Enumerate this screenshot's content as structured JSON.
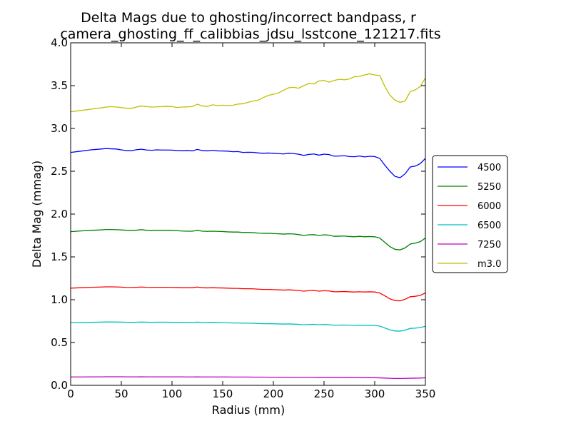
{
  "chart_data": {
    "type": "line",
    "title": "Delta Mags due to ghosting/incorrect bandpass, r",
    "subtitle": "camera_ghosting_ff_calibbias_jdsu_lsstcone_121217.fits",
    "xlabel": "Radius (mm)",
    "ylabel": "Delta Mag (mmag)",
    "xlim": [
      0,
      350
    ],
    "ylim": [
      0,
      4.0
    ],
    "xticks": [
      0,
      50,
      100,
      150,
      200,
      250,
      300,
      350
    ],
    "yticks": [
      0,
      0.5,
      1.0,
      1.5,
      2.0,
      2.5,
      3.0,
      3.5,
      4.0
    ],
    "xtick_labels": [
      "0",
      "50",
      "100",
      "150",
      "200",
      "250",
      "300",
      "350"
    ],
    "ytick_labels": [
      "0.0",
      "0.5",
      "1.0",
      "1.5",
      "2.0",
      "2.5",
      "3.0",
      "3.5",
      "4.0"
    ],
    "grid": false,
    "legend_position": "outside-right",
    "x": [
      0,
      10,
      20,
      30,
      35,
      40,
      45,
      50,
      55,
      60,
      65,
      70,
      75,
      80,
      85,
      90,
      95,
      100,
      105,
      110,
      115,
      120,
      125,
      130,
      135,
      140,
      145,
      150,
      155,
      160,
      165,
      170,
      175,
      180,
      185,
      190,
      195,
      200,
      205,
      210,
      215,
      220,
      225,
      230,
      235,
      240,
      245,
      250,
      255,
      260,
      265,
      270,
      275,
      280,
      285,
      290,
      295,
      300,
      305,
      310,
      315,
      320,
      325,
      330,
      335,
      340,
      345,
      350
    ],
    "series": [
      {
        "name": "4500",
        "color": "#0000ff",
        "values": [
          2.72,
          2.735,
          2.75,
          2.76,
          2.765,
          2.762,
          2.76,
          2.75,
          2.742,
          2.74,
          2.752,
          2.757,
          2.748,
          2.745,
          2.75,
          2.748,
          2.748,
          2.747,
          2.742,
          2.74,
          2.742,
          2.738,
          2.755,
          2.742,
          2.738,
          2.745,
          2.738,
          2.737,
          2.735,
          2.728,
          2.73,
          2.72,
          2.722,
          2.721,
          2.714,
          2.71,
          2.713,
          2.71,
          2.706,
          2.702,
          2.71,
          2.706,
          2.699,
          2.685,
          2.697,
          2.702,
          2.688,
          2.7,
          2.695,
          2.676,
          2.678,
          2.681,
          2.672,
          2.67,
          2.678,
          2.668,
          2.675,
          2.672,
          2.65,
          2.57,
          2.5,
          2.44,
          2.425,
          2.47,
          2.55,
          2.56,
          2.59,
          2.65
        ]
      },
      {
        "name": "5250",
        "color": "#008000",
        "values": [
          1.795,
          1.803,
          1.81,
          1.815,
          1.82,
          1.82,
          1.818,
          1.815,
          1.81,
          1.808,
          1.812,
          1.818,
          1.81,
          1.808,
          1.81,
          1.81,
          1.81,
          1.808,
          1.806,
          1.802,
          1.8,
          1.8,
          1.81,
          1.8,
          1.798,
          1.8,
          1.798,
          1.796,
          1.792,
          1.79,
          1.79,
          1.785,
          1.785,
          1.783,
          1.778,
          1.775,
          1.776,
          1.773,
          1.77,
          1.766,
          1.77,
          1.768,
          1.76,
          1.75,
          1.758,
          1.76,
          1.75,
          1.758,
          1.754,
          1.74,
          1.742,
          1.744,
          1.738,
          1.735,
          1.74,
          1.735,
          1.738,
          1.735,
          1.72,
          1.67,
          1.62,
          1.588,
          1.582,
          1.605,
          1.65,
          1.66,
          1.678,
          1.72
        ]
      },
      {
        "name": "6000",
        "color": "#ff0000",
        "values": [
          1.135,
          1.14,
          1.145,
          1.148,
          1.15,
          1.15,
          1.149,
          1.147,
          1.144,
          1.143,
          1.145,
          1.148,
          1.145,
          1.144,
          1.145,
          1.145,
          1.145,
          1.144,
          1.142,
          1.14,
          1.14,
          1.14,
          1.148,
          1.14,
          1.138,
          1.14,
          1.138,
          1.137,
          1.135,
          1.132,
          1.132,
          1.128,
          1.128,
          1.127,
          1.123,
          1.12,
          1.12,
          1.118,
          1.115,
          1.112,
          1.115,
          1.112,
          1.107,
          1.1,
          1.105,
          1.107,
          1.1,
          1.105,
          1.102,
          1.093,
          1.094,
          1.096,
          1.092,
          1.09,
          1.093,
          1.09,
          1.092,
          1.09,
          1.078,
          1.045,
          1.01,
          0.99,
          0.987,
          1.005,
          1.035,
          1.04,
          1.05,
          1.08
        ]
      },
      {
        "name": "6500",
        "color": "#00bfbf",
        "values": [
          0.73,
          0.733,
          0.736,
          0.738,
          0.74,
          0.74,
          0.739,
          0.738,
          0.736,
          0.735,
          0.737,
          0.739,
          0.737,
          0.736,
          0.737,
          0.737,
          0.737,
          0.736,
          0.735,
          0.734,
          0.734,
          0.734,
          0.738,
          0.734,
          0.733,
          0.734,
          0.733,
          0.732,
          0.73,
          0.728,
          0.728,
          0.726,
          0.726,
          0.725,
          0.722,
          0.72,
          0.72,
          0.719,
          0.717,
          0.715,
          0.717,
          0.715,
          0.712,
          0.707,
          0.71,
          0.712,
          0.707,
          0.71,
          0.708,
          0.702,
          0.703,
          0.704,
          0.701,
          0.7,
          0.702,
          0.7,
          0.701,
          0.7,
          0.692,
          0.67,
          0.648,
          0.635,
          0.633,
          0.645,
          0.665,
          0.668,
          0.675,
          0.69
        ]
      },
      {
        "name": "7250",
        "color": "#bf00bf",
        "values": [
          0.098,
          0.098,
          0.099,
          0.099,
          0.1,
          0.1,
          0.1,
          0.1,
          0.099,
          0.099,
          0.099,
          0.1,
          0.099,
          0.099,
          0.099,
          0.099,
          0.099,
          0.099,
          0.099,
          0.099,
          0.098,
          0.098,
          0.099,
          0.098,
          0.098,
          0.098,
          0.098,
          0.098,
          0.098,
          0.097,
          0.097,
          0.097,
          0.097,
          0.096,
          0.096,
          0.096,
          0.095,
          0.095,
          0.095,
          0.094,
          0.094,
          0.094,
          0.093,
          0.093,
          0.093,
          0.093,
          0.092,
          0.092,
          0.092,
          0.091,
          0.091,
          0.091,
          0.09,
          0.09,
          0.09,
          0.089,
          0.089,
          0.089,
          0.087,
          0.085,
          0.082,
          0.08,
          0.08,
          0.081,
          0.083,
          0.084,
          0.085,
          0.088
        ]
      },
      {
        "name": "m3.0",
        "color": "#bfbf00",
        "values": [
          3.195,
          3.21,
          3.225,
          3.24,
          3.25,
          3.255,
          3.25,
          3.245,
          3.235,
          3.235,
          3.25,
          3.262,
          3.255,
          3.25,
          3.252,
          3.255,
          3.258,
          3.256,
          3.245,
          3.25,
          3.252,
          3.255,
          3.283,
          3.262,
          3.258,
          3.276,
          3.268,
          3.272,
          3.268,
          3.27,
          3.285,
          3.288,
          3.305,
          3.32,
          3.33,
          3.36,
          3.385,
          3.4,
          3.415,
          3.445,
          3.475,
          3.48,
          3.47,
          3.5,
          3.525,
          3.52,
          3.555,
          3.56,
          3.54,
          3.56,
          3.575,
          3.568,
          3.578,
          3.605,
          3.608,
          3.625,
          3.638,
          3.625,
          3.618,
          3.49,
          3.39,
          3.33,
          3.305,
          3.32,
          3.43,
          3.45,
          3.49,
          3.59
        ]
      }
    ]
  }
}
